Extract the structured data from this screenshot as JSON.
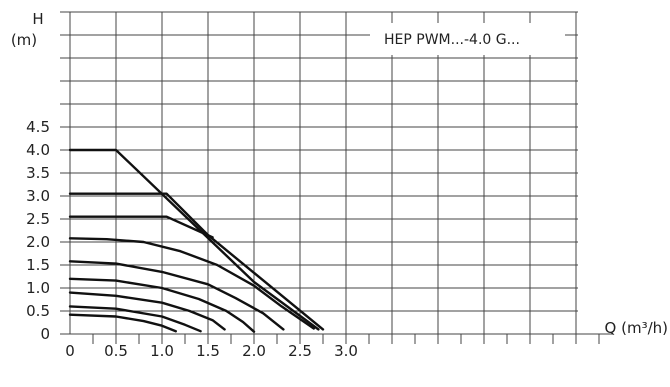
{
  "chart_data": {
    "type": "line",
    "legend_label": "HEP PWM...-4.0 G...",
    "ylabel_top": "H",
    "ylabel_unit": "(m)",
    "xlabel": "Q (m³/h)",
    "x_ticks": [
      0,
      0.5,
      1.0,
      1.5,
      2.0,
      2.5,
      3.0
    ],
    "x_tick_labels": [
      "0",
      "0.5",
      "1.0",
      "1.5",
      "2.0",
      "2.5",
      "3.0"
    ],
    "y_ticks": [
      0,
      0.5,
      1.0,
      1.5,
      2.0,
      2.5,
      3.0,
      3.5,
      4.0,
      4.5
    ],
    "y_tick_labels": [
      "0",
      "0.5",
      "1.0",
      "1.5",
      "2.0",
      "2.5",
      "3.0",
      "3.5",
      "4.0",
      "4.5"
    ],
    "xlim": [
      0,
      3.0
    ],
    "ylim": [
      0,
      4.5
    ],
    "grid": true,
    "series": [
      {
        "points": [
          [
            0,
            4.0
          ],
          [
            0.5,
            4.0
          ],
          [
            2.0,
            1.13
          ],
          [
            2.7,
            0.1
          ]
        ]
      },
      {
        "points": [
          [
            0,
            3.05
          ],
          [
            1.05,
            3.05
          ],
          [
            1.5,
            2.15
          ],
          [
            2.75,
            0.1
          ]
        ]
      },
      {
        "points": [
          [
            0,
            2.55
          ],
          [
            1.05,
            2.55
          ],
          [
            1.55,
            2.1
          ]
        ]
      },
      {
        "points": [
          [
            0,
            2.08
          ],
          [
            0.4,
            2.06
          ],
          [
            0.8,
            2.0
          ],
          [
            1.2,
            1.8
          ],
          [
            1.6,
            1.5
          ],
          [
            2.0,
            1.05
          ],
          [
            2.3,
            0.6
          ],
          [
            2.65,
            0.12
          ]
        ]
      },
      {
        "points": [
          [
            0,
            1.58
          ],
          [
            0.5,
            1.53
          ],
          [
            1.0,
            1.35
          ],
          [
            1.5,
            1.08
          ],
          [
            1.8,
            0.78
          ],
          [
            2.1,
            0.45
          ],
          [
            2.32,
            0.1
          ]
        ]
      },
      {
        "points": [
          [
            0,
            1.2
          ],
          [
            0.5,
            1.16
          ],
          [
            1.0,
            1.0
          ],
          [
            1.4,
            0.76
          ],
          [
            1.7,
            0.5
          ],
          [
            1.88,
            0.26
          ],
          [
            2.0,
            0.05
          ]
        ]
      },
      {
        "points": [
          [
            0,
            0.9
          ],
          [
            0.5,
            0.83
          ],
          [
            1.0,
            0.68
          ],
          [
            1.3,
            0.5
          ],
          [
            1.55,
            0.3
          ],
          [
            1.68,
            0.1
          ]
        ]
      },
      {
        "points": [
          [
            0,
            0.6
          ],
          [
            0.5,
            0.55
          ],
          [
            1.0,
            0.38
          ],
          [
            1.25,
            0.2
          ],
          [
            1.42,
            0.06
          ]
        ]
      },
      {
        "points": [
          [
            0,
            0.42
          ],
          [
            0.5,
            0.38
          ],
          [
            0.8,
            0.28
          ],
          [
            1.0,
            0.18
          ],
          [
            1.15,
            0.06
          ]
        ]
      }
    ]
  }
}
